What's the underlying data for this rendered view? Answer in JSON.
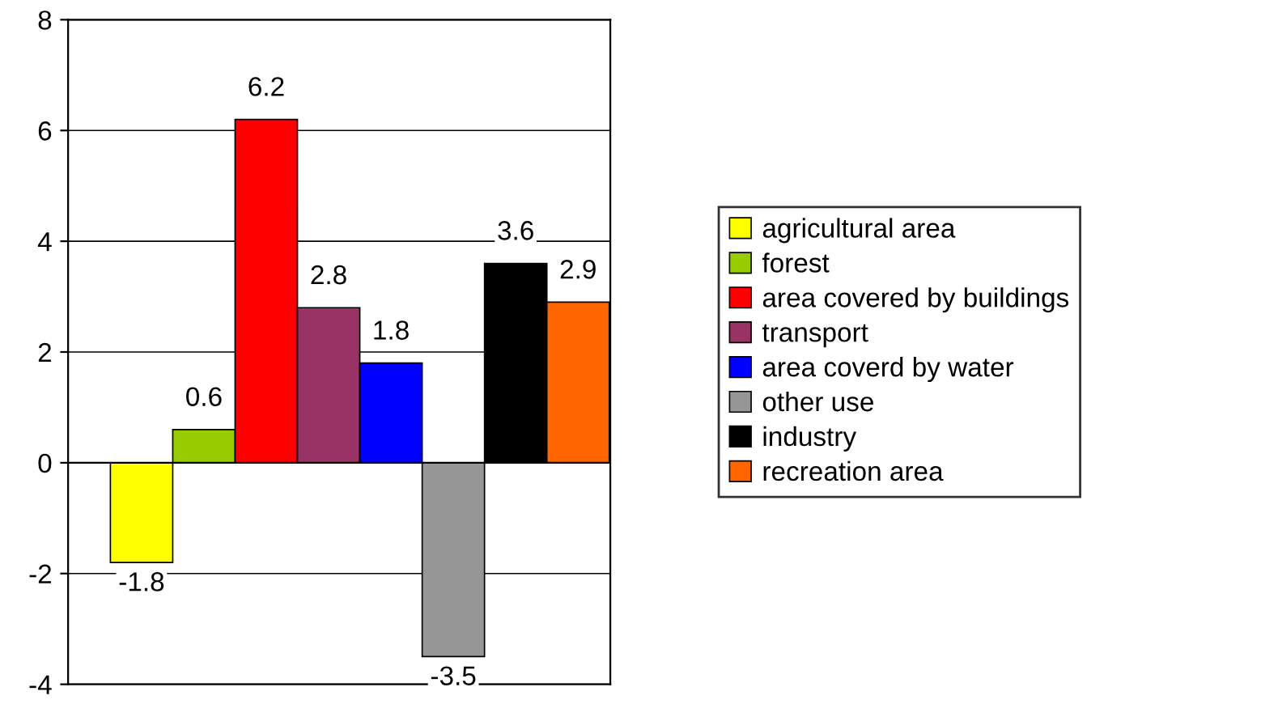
{
  "chart_data": {
    "type": "bar",
    "categories": [
      null
    ],
    "series": [
      {
        "name": "agricultural area",
        "color": "#ffff00",
        "values": [
          -1.8
        ]
      },
      {
        "name": "forest",
        "color": "#99cc00",
        "values": [
          0.6
        ]
      },
      {
        "name": "area covered by buildings",
        "color": "#ff0000",
        "values": [
          6.2
        ]
      },
      {
        "name": "transport",
        "color": "#993366",
        "values": [
          2.8
        ]
      },
      {
        "name": "area coverd by water",
        "color": "#0000ff",
        "values": [
          1.8
        ]
      },
      {
        "name": "other use",
        "color": "#969696",
        "values": [
          -3.5
        ]
      },
      {
        "name": "industry",
        "color": "#000000",
        "values": [
          3.6
        ]
      },
      {
        "name": "recreation area",
        "color": "#ff6600",
        "values": [
          2.9
        ]
      }
    ],
    "ylim": [
      -4,
      8
    ],
    "yticks": [
      -4,
      -2,
      0,
      2,
      4,
      6,
      8
    ],
    "grid": "y",
    "legend": "right",
    "data_labels": true
  }
}
